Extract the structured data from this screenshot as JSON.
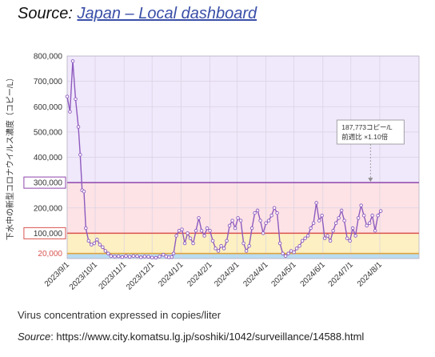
{
  "heading": {
    "prefix": "Source: ",
    "link_text": "Japan – Local dashboard"
  },
  "caption": "Virus concentration expressed in copies/liter",
  "source": {
    "label": "Source",
    "text": ": https://www.city.komatsu.lg.jp/soshiki/1042/surveillance/14588.html"
  },
  "chart_data": {
    "type": "line",
    "title": "",
    "xlabel": "",
    "ylabel": "下水中の新型コロナウイルス濃度（コピー/L）",
    "ylim": [
      0,
      800000
    ],
    "xlim": [
      "2023-09-01",
      "2024-09-12"
    ],
    "y_ticks": [
      {
        "value": 0,
        "label": ""
      },
      {
        "value": 100000,
        "label": "100,000"
      },
      {
        "value": 200000,
        "label": "200,000"
      },
      {
        "value": 300000,
        "label": "300,000"
      },
      {
        "value": 400000,
        "label": "400,000"
      },
      {
        "value": 500000,
        "label": "500,000"
      },
      {
        "value": 600000,
        "label": "600,000"
      },
      {
        "value": 700000,
        "label": "700,000"
      },
      {
        "value": 800000,
        "label": "800,000"
      }
    ],
    "x_ticks": [
      {
        "value": "2023-09-01",
        "label": "2023/9/1"
      },
      {
        "value": "2023-10-01",
        "label": "2023/10/1"
      },
      {
        "value": "2023-11-01",
        "label": "2023/11/1"
      },
      {
        "value": "2023-12-01",
        "label": "2023/12/1"
      },
      {
        "value": "2024-01-01",
        "label": "2024/1/1"
      },
      {
        "value": "2024-02-01",
        "label": "2024/2/1"
      },
      {
        "value": "2024-03-01",
        "label": "2024/3/1"
      },
      {
        "value": "2024-04-01",
        "label": "2024/4/1"
      },
      {
        "value": "2024-05-01",
        "label": "2024/5/1"
      },
      {
        "value": "2024-06-01",
        "label": "2024/6/1"
      },
      {
        "value": "2024-07-01",
        "label": "2024/7/1"
      },
      {
        "value": "2024-08-01",
        "label": "2024/8/1"
      }
    ],
    "bands": [
      {
        "from": 0,
        "to": 20000,
        "color": "#b9dcf2"
      },
      {
        "from": 20000,
        "to": 100000,
        "color": "#fdf0c2"
      },
      {
        "from": 100000,
        "to": 300000,
        "color": "#fde3e6"
      },
      {
        "from": 300000,
        "to": 800000,
        "color": "#f0e8fb"
      }
    ],
    "thresholds": [
      {
        "value": 20000,
        "label": "20,000",
        "color": "#e0a43c",
        "label_color": "#d9534f"
      },
      {
        "value": 100000,
        "label": "100,000",
        "color": "#d9534f",
        "label_color": "#333333"
      },
      {
        "value": 300000,
        "label": "300,000",
        "color": "#8e44ad",
        "label_color": "#333333"
      }
    ],
    "annotation": {
      "lines": [
        "187,773コピー/L",
        "前週比 ×1.10倍"
      ],
      "x": "2024-07-22",
      "value": 187773
    },
    "series": [
      {
        "color": "#8e5bbf",
        "points": [
          [
            "2023-09-01",
            640000
          ],
          [
            "2023-09-04",
            580000
          ],
          [
            "2023-09-07",
            780000
          ],
          [
            "2023-09-10",
            630000
          ],
          [
            "2023-09-13",
            520000
          ],
          [
            "2023-09-15",
            410000
          ],
          [
            "2023-09-17",
            270000
          ],
          [
            "2023-09-19",
            265000
          ],
          [
            "2023-09-21",
            120000
          ],
          [
            "2023-09-24",
            70000
          ],
          [
            "2023-09-27",
            55000
          ],
          [
            "2023-09-30",
            60000
          ],
          [
            "2023-10-03",
            75000
          ],
          [
            "2023-10-06",
            55000
          ],
          [
            "2023-10-09",
            45000
          ],
          [
            "2023-10-12",
            30000
          ],
          [
            "2023-10-15",
            20000
          ],
          [
            "2023-10-18",
            10000
          ],
          [
            "2023-10-22",
            8000
          ],
          [
            "2023-10-26",
            9000
          ],
          [
            "2023-10-30",
            6000
          ],
          [
            "2023-11-03",
            10000
          ],
          [
            "2023-11-07",
            7000
          ],
          [
            "2023-11-11",
            10000
          ],
          [
            "2023-11-15",
            9000
          ],
          [
            "2023-11-19",
            5000
          ],
          [
            "2023-11-23",
            8000
          ],
          [
            "2023-11-27",
            7000
          ],
          [
            "2023-12-01",
            4000
          ],
          [
            "2023-12-05",
            3000
          ],
          [
            "2023-12-09",
            8000
          ],
          [
            "2023-12-13",
            15000
          ],
          [
            "2023-12-16",
            8000
          ],
          [
            "2023-12-19",
            5000
          ],
          [
            "2023-12-22",
            6000
          ],
          [
            "2023-12-24",
            20000
          ],
          [
            "2023-12-27",
            90000
          ],
          [
            "2023-12-30",
            110000
          ],
          [
            "2024-01-02",
            115000
          ],
          [
            "2024-01-05",
            60000
          ],
          [
            "2024-01-08",
            100000
          ],
          [
            "2024-01-11",
            80000
          ],
          [
            "2024-01-14",
            60000
          ],
          [
            "2024-01-17",
            110000
          ],
          [
            "2024-01-20",
            160000
          ],
          [
            "2024-01-23",
            110000
          ],
          [
            "2024-01-26",
            90000
          ],
          [
            "2024-01-29",
            120000
          ],
          [
            "2024-02-01",
            110000
          ],
          [
            "2024-02-04",
            70000
          ],
          [
            "2024-02-07",
            40000
          ],
          [
            "2024-02-10",
            30000
          ],
          [
            "2024-02-13",
            50000
          ],
          [
            "2024-02-16",
            40000
          ],
          [
            "2024-02-19",
            70000
          ],
          [
            "2024-02-22",
            130000
          ],
          [
            "2024-02-25",
            150000
          ],
          [
            "2024-02-28",
            120000
          ],
          [
            "2024-03-02",
            160000
          ],
          [
            "2024-03-05",
            150000
          ],
          [
            "2024-03-08",
            60000
          ],
          [
            "2024-03-11",
            30000
          ],
          [
            "2024-03-14",
            50000
          ],
          [
            "2024-03-17",
            120000
          ],
          [
            "2024-03-20",
            180000
          ],
          [
            "2024-03-23",
            190000
          ],
          [
            "2024-03-26",
            150000
          ],
          [
            "2024-03-29",
            100000
          ],
          [
            "2024-04-01",
            140000
          ],
          [
            "2024-04-04",
            150000
          ],
          [
            "2024-04-07",
            170000
          ],
          [
            "2024-04-10",
            200000
          ],
          [
            "2024-04-13",
            180000
          ],
          [
            "2024-04-16",
            60000
          ],
          [
            "2024-04-19",
            20000
          ],
          [
            "2024-04-22",
            10000
          ],
          [
            "2024-04-25",
            20000
          ],
          [
            "2024-04-28",
            30000
          ],
          [
            "2024-05-01",
            25000
          ],
          [
            "2024-05-04",
            40000
          ],
          [
            "2024-05-07",
            50000
          ],
          [
            "2024-05-10",
            70000
          ],
          [
            "2024-05-13",
            80000
          ],
          [
            "2024-05-16",
            90000
          ],
          [
            "2024-05-19",
            120000
          ],
          [
            "2024-05-22",
            140000
          ],
          [
            "2024-05-25",
            220000
          ],
          [
            "2024-05-28",
            150000
          ],
          [
            "2024-05-31",
            170000
          ],
          [
            "2024-06-03",
            80000
          ],
          [
            "2024-06-06",
            90000
          ],
          [
            "2024-06-09",
            70000
          ],
          [
            "2024-06-12",
            110000
          ],
          [
            "2024-06-15",
            140000
          ],
          [
            "2024-06-18",
            160000
          ],
          [
            "2024-06-21",
            190000
          ],
          [
            "2024-06-24",
            150000
          ],
          [
            "2024-06-27",
            80000
          ],
          [
            "2024-06-30",
            70000
          ],
          [
            "2024-07-03",
            120000
          ],
          [
            "2024-07-06",
            90000
          ],
          [
            "2024-07-09",
            160000
          ],
          [
            "2024-07-12",
            210000
          ],
          [
            "2024-07-15",
            170000
          ],
          [
            "2024-07-18",
            130000
          ],
          [
            "2024-07-21",
            140000
          ],
          [
            "2024-07-24",
            170000
          ],
          [
            "2024-07-27",
            110000
          ],
          [
            "2024-07-30",
            170000
          ],
          [
            "2024-08-02",
            187773
          ]
        ]
      }
    ]
  }
}
